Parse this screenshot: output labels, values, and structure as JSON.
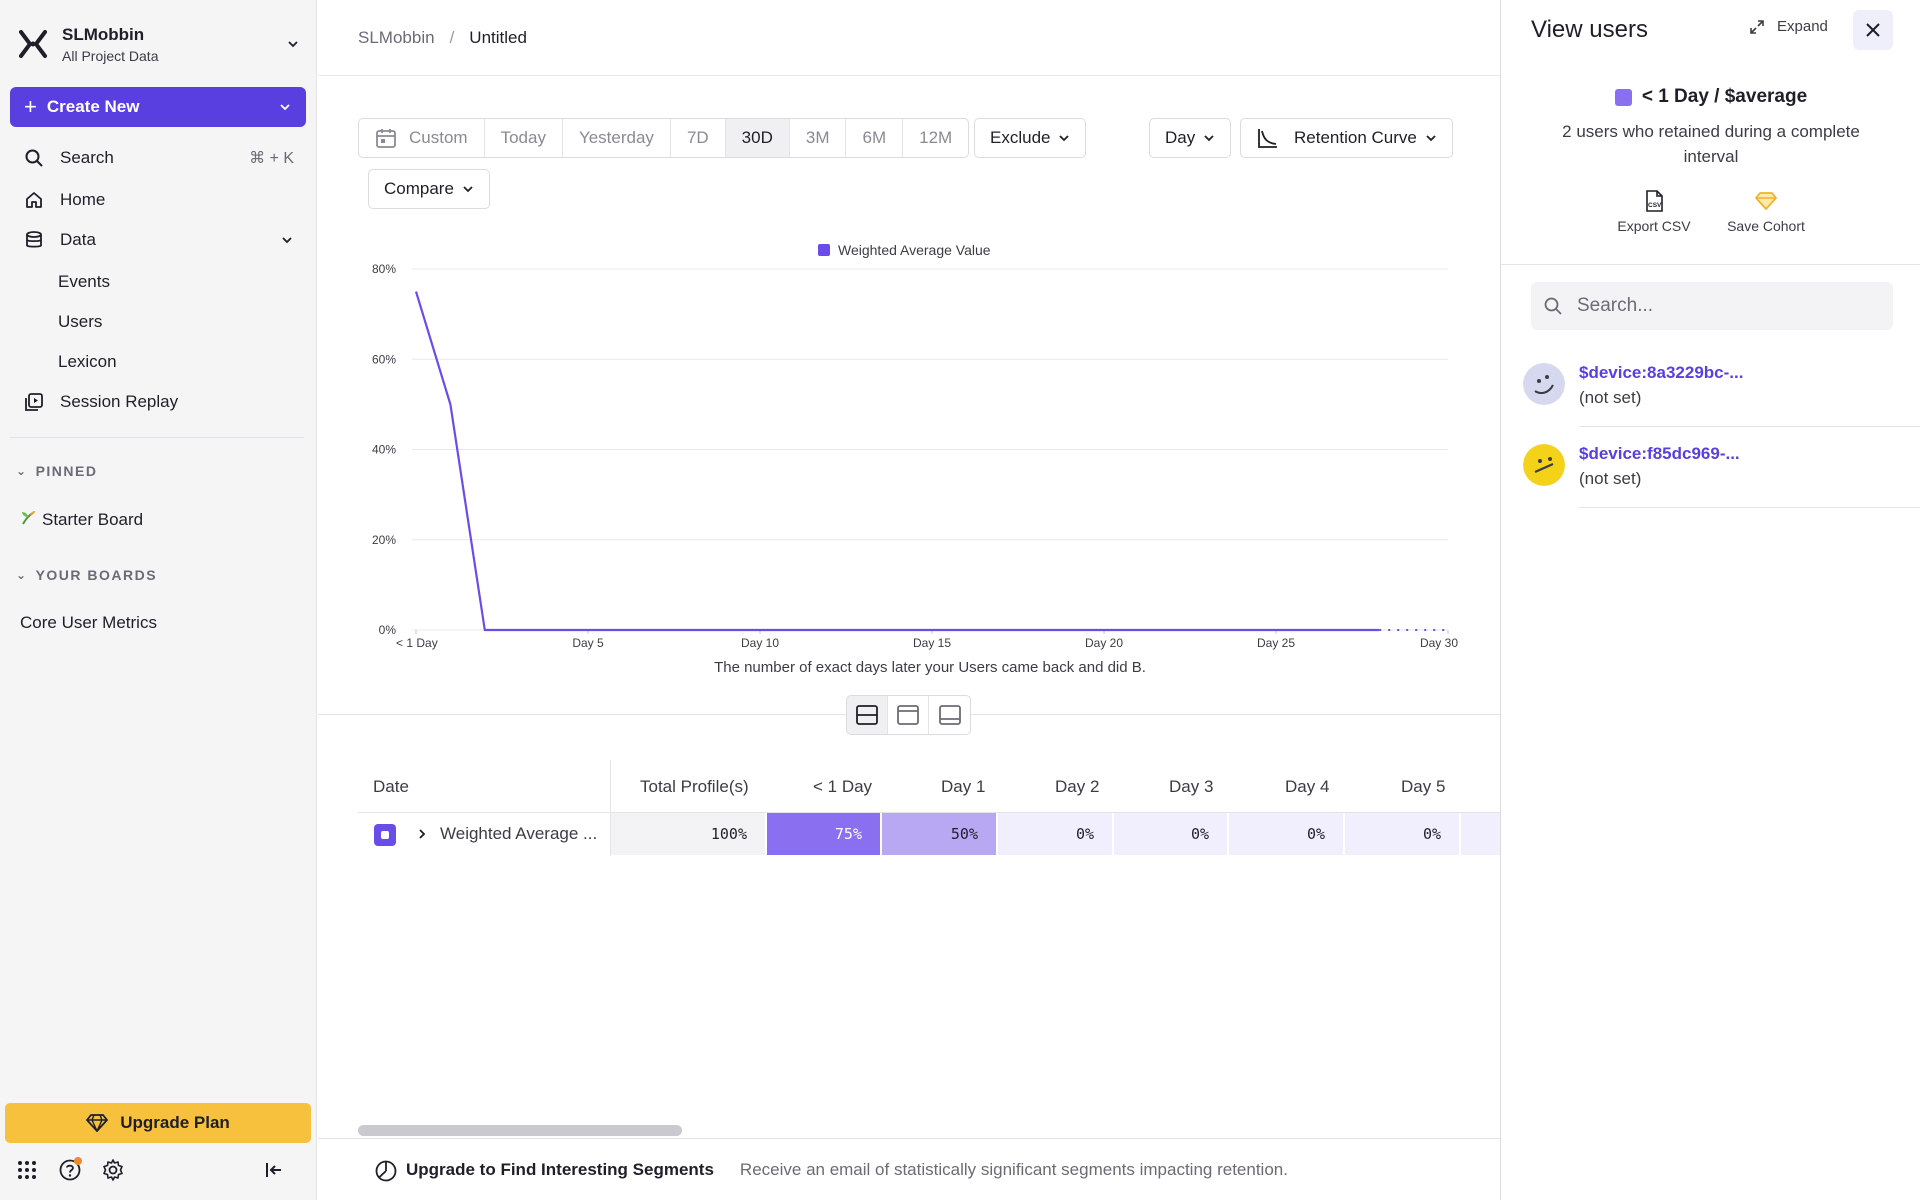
{
  "sidebar": {
    "project_name": "SLMobbin",
    "project_sub": "All Project Data",
    "create_label": "Create New",
    "search_label": "Search",
    "search_hint": "⌘ + K",
    "home_label": "Home",
    "data_label": "Data",
    "data_items": [
      "Events",
      "Users",
      "Lexicon"
    ],
    "session_replay_label": "Session Replay",
    "pinned_header": "PINNED",
    "pinned_board": "Starter Board",
    "your_boards_header": "YOUR BOARDS",
    "your_board": "Core User Metrics",
    "upgrade_label": "Upgrade Plan"
  },
  "breadcrumb": {
    "parent": "SLMobbin",
    "separator": "/",
    "current": "Untitled"
  },
  "toolbar": {
    "ranges": [
      "Custom",
      "Today",
      "Yesterday",
      "7D",
      "30D",
      "3M",
      "6M",
      "12M"
    ],
    "active_range": "30D",
    "exclude_label": "Exclude",
    "interval_label": "Day",
    "chart_type_label": "Retention Curve",
    "compare_label": "Compare"
  },
  "chart_data": {
    "type": "line",
    "legend": [
      "Weighted Average Value"
    ],
    "legend_placement": "top-center",
    "x_tick_labels": [
      "< 1 Day",
      "Day 5",
      "Day 10",
      "Day 15",
      "Day 20",
      "Day 25",
      "Day 30"
    ],
    "y_tick_labels": [
      "0%",
      "20%",
      "40%",
      "60%",
      "80%"
    ],
    "ylim": [
      0,
      80
    ],
    "x_caption": "The number of exact days later your Users came back and did B.",
    "series": [
      {
        "name": "Weighted Average Value",
        "color": "#6a4de8",
        "x": [
          0,
          1,
          2,
          3,
          4,
          5,
          6,
          7,
          8,
          9,
          10,
          11,
          12,
          13,
          14,
          15,
          16,
          17,
          18,
          19,
          20,
          21,
          22,
          23,
          24,
          25,
          26,
          27,
          28,
          29,
          30
        ],
        "values": [
          75,
          50,
          0,
          0,
          0,
          0,
          0,
          0,
          0,
          0,
          0,
          0,
          0,
          0,
          0,
          0,
          0,
          0,
          0,
          0,
          0,
          0,
          0,
          0,
          0,
          0,
          0,
          0,
          0,
          0,
          0
        ],
        "incomplete_from_x": 28
      }
    ],
    "grid": true
  },
  "table": {
    "headers": [
      "Date",
      "Total Profile(s)",
      "< 1 Day",
      "Day 1",
      "Day 2",
      "Day 3",
      "Day 4",
      "Day 5"
    ],
    "row": {
      "name": "Weighted Average ...",
      "total": "100%",
      "values": [
        "75%",
        "50%",
        "0%",
        "0%",
        "0%",
        "0%"
      ]
    }
  },
  "footer": {
    "title": "Upgrade to Find Interesting Segments",
    "description": "Receive an email of statistically significant segments impacting retention."
  },
  "panel": {
    "title": "View users",
    "expand_label": "Expand",
    "cohort_title": "< 1 Day / $average",
    "cohort_desc": "2 users who retained during a complete interval",
    "export_label": "Export CSV",
    "save_cohort_label": "Save Cohort",
    "search_placeholder": "Search...",
    "users": [
      {
        "id": "$device:8a3229bc-...",
        "sub": "(not set)"
      },
      {
        "id": "$device:f85dc969-...",
        "sub": "(not set)"
      }
    ]
  },
  "colors": {
    "accent": "#5a3fe0",
    "upgrade": "#f8c13d",
    "line": "#6a4de8"
  }
}
